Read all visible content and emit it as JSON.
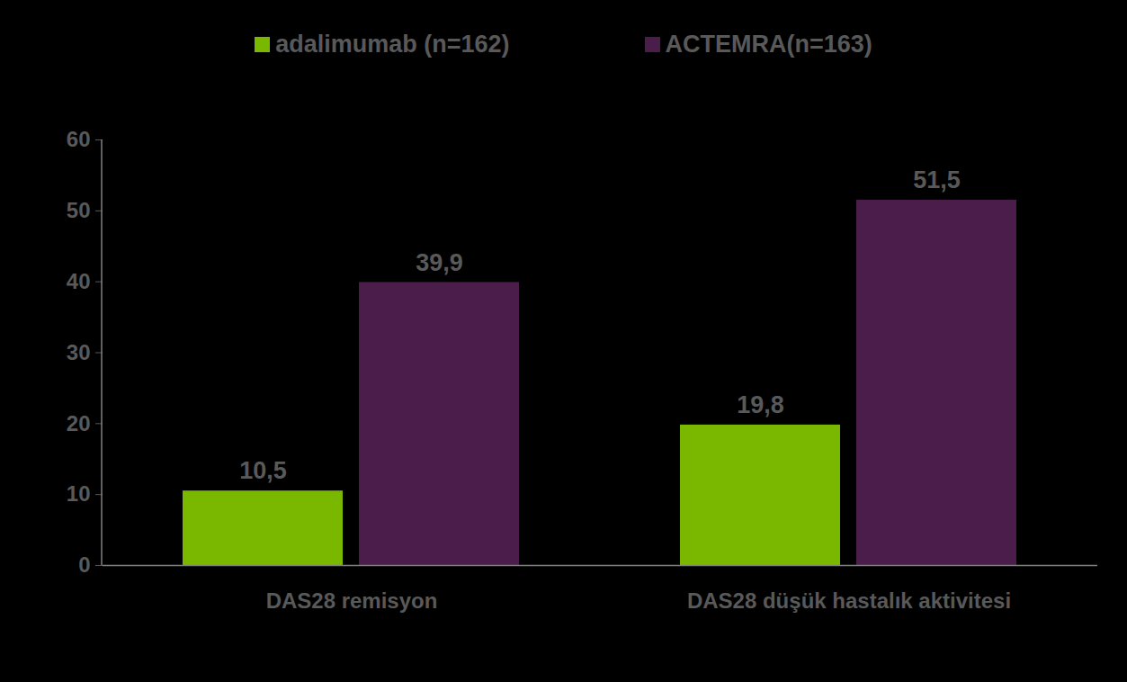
{
  "chart_data": {
    "type": "bar",
    "categories": [
      "DAS28 remisyon",
      "DAS28 düşük hastalık aktivitesi"
    ],
    "series": [
      {
        "name": "adalimumab (n=162)",
        "color": "#7ab800",
        "values": [
          10.5,
          19.8
        ],
        "value_labels": [
          "10,5",
          "19,8"
        ]
      },
      {
        "name": "ACTEMRA(n=163)",
        "color": "#4b1d4b",
        "values": [
          39.9,
          51.5
        ],
        "value_labels": [
          "39,9",
          "51,5"
        ]
      }
    ],
    "ylim": [
      0,
      60
    ],
    "yticks": [
      0,
      10,
      20,
      30,
      40,
      50,
      60
    ],
    "grid": false,
    "legend": "top",
    "data_labels": true
  }
}
